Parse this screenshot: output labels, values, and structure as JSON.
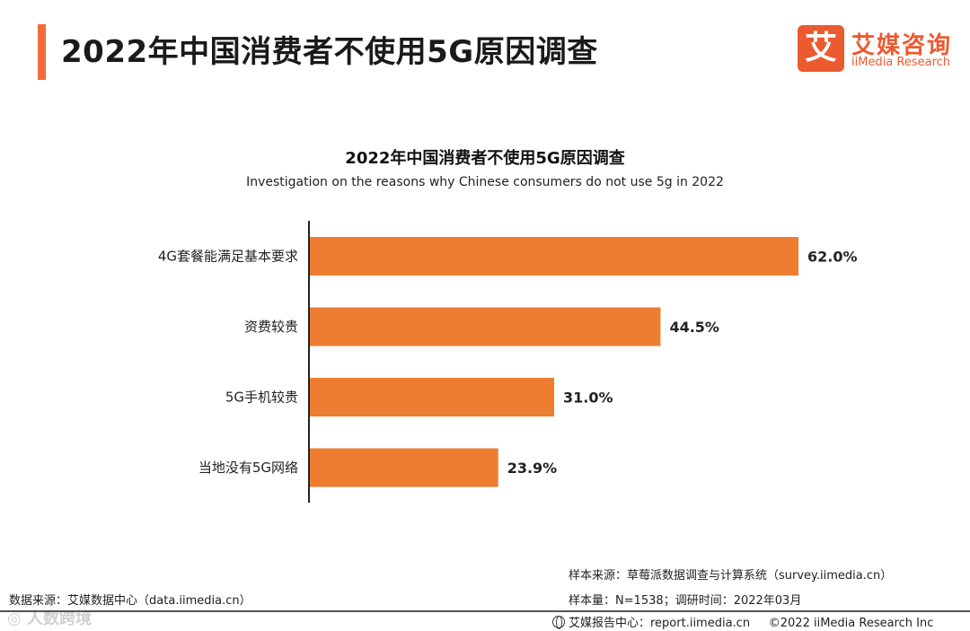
{
  "header": {
    "title": "2022年中国消费者不使用5G原因调查",
    "logo_mark": "艾",
    "logo_cn": "艾媒咨询",
    "logo_en": "iiMedia Research"
  },
  "chart_data": {
    "type": "bar",
    "orientation": "horizontal",
    "title": "2022年中国消费者不使用5G原因调查",
    "subtitle": "Investigation on the reasons why Chinese consumers do not use 5g in 2022",
    "categories": [
      "4G套餐能满足基本要求",
      "资费较贵",
      "5G手机较贵",
      "当地没有5G网络"
    ],
    "values": [
      62.0,
      44.5,
      31.0,
      23.9
    ],
    "labels": [
      "62.0%",
      "44.5%",
      "31.0%",
      "23.9%"
    ],
    "unit": "%",
    "xlim": [
      0,
      62.0
    ],
    "bar_color": "#ed7d31",
    "legend": "none",
    "grid": false
  },
  "footer": {
    "source_left": "数据来源：艾媒数据中心（data.iimedia.cn）",
    "sample_source": "样本来源：草莓派数据调查与计算系统（survey.iimedia.cn）",
    "sample_size": "样本量：N=1538；调研时间：2022年03月",
    "report_center": "艾媒报告中心：report.iimedia.cn",
    "copyright": "©2022  iiMedia Research  Inc",
    "watermark": "◎ 人数跨境"
  }
}
